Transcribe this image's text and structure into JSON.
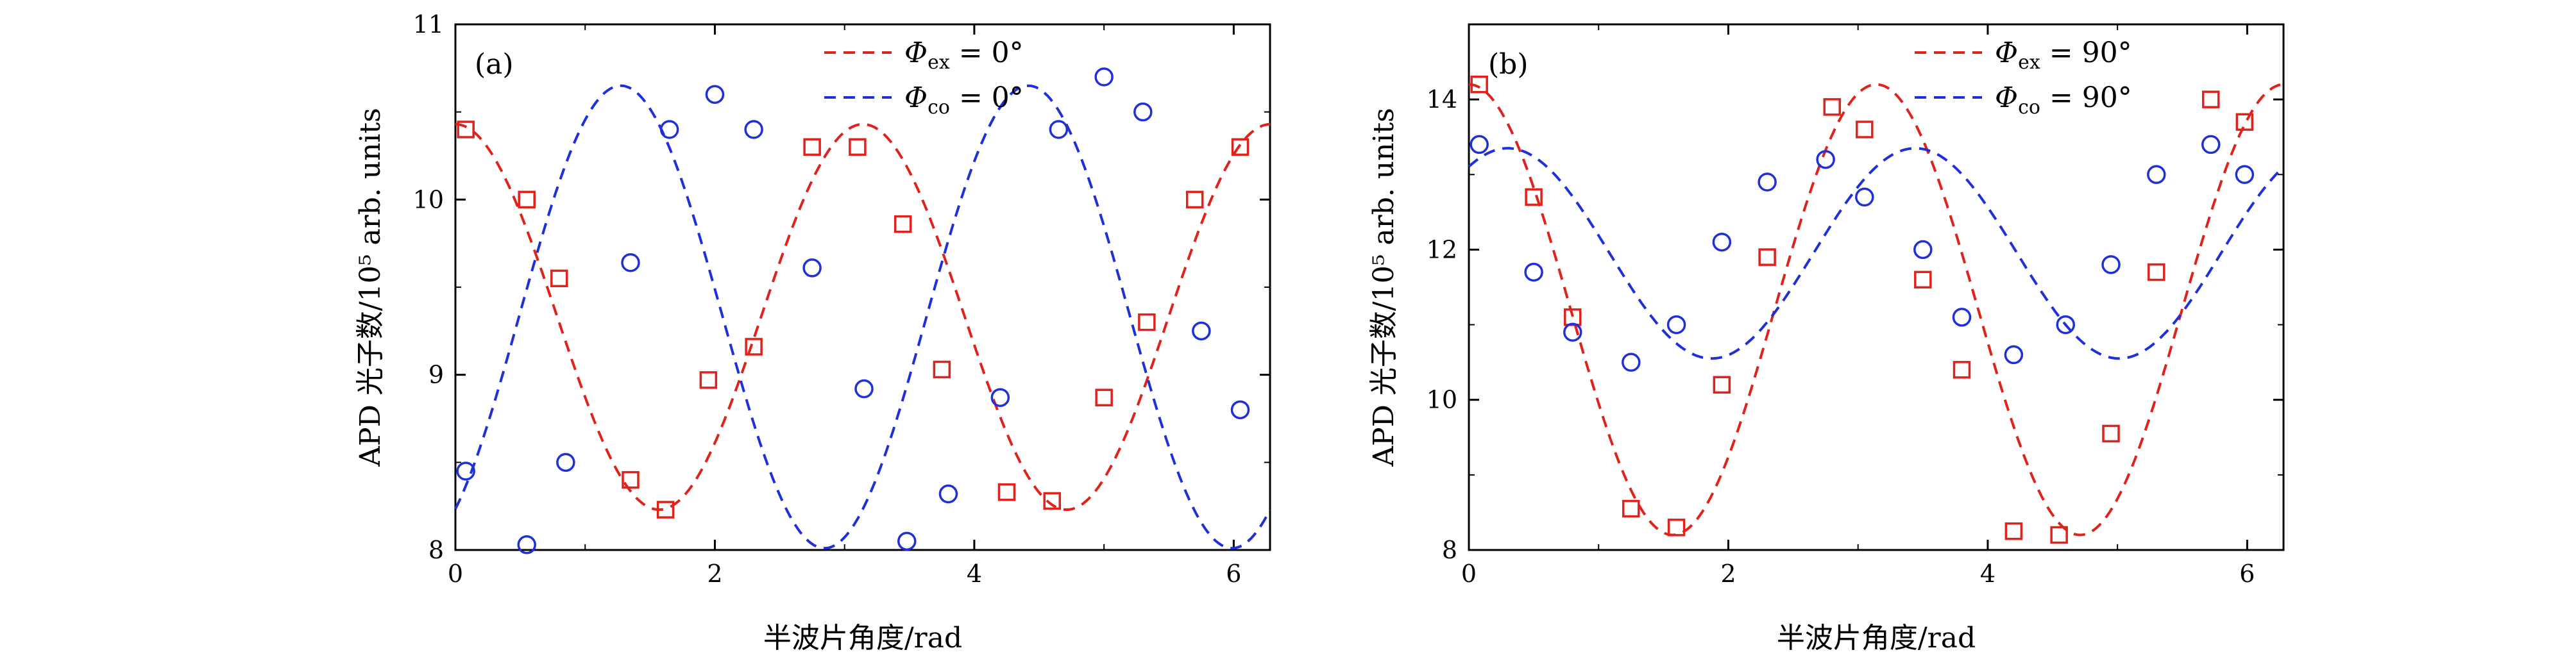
{
  "chart_data": [
    {
      "type": "scatter",
      "panel_label": "(a)",
      "xlabel": "半波片角度/rad",
      "ylabel": "APD 光子数/10⁵ arb. units",
      "xlim": [
        0,
        6.28
      ],
      "ylim": [
        8,
        11
      ],
      "xticks": [
        0,
        2,
        4,
        6
      ],
      "yticks": [
        8,
        9,
        10,
        11
      ],
      "legend_position": "top-right",
      "series": [
        {
          "name": "Φex = 0°",
          "legend_symbol": "Φ",
          "legend_subscript": "ex",
          "legend_value": " = 0°",
          "color": "#e0221c",
          "marker": "square",
          "fit": {
            "offset": 9.33,
            "amplitude": 1.1,
            "frequency": 2,
            "phase": 0
          },
          "points": [
            [
              0.08,
              10.4
            ],
            [
              0.55,
              10.0
            ],
            [
              0.8,
              9.55
            ],
            [
              1.35,
              8.4
            ],
            [
              1.62,
              8.23
            ],
            [
              1.95,
              8.97
            ],
            [
              2.3,
              9.16
            ],
            [
              2.75,
              10.3
            ],
            [
              3.1,
              10.3
            ],
            [
              3.45,
              9.86
            ],
            [
              3.75,
              9.03
            ],
            [
              4.25,
              8.33
            ],
            [
              4.6,
              8.28
            ],
            [
              5.0,
              8.87
            ],
            [
              5.33,
              9.3
            ],
            [
              5.7,
              10.0
            ],
            [
              6.05,
              10.3
            ]
          ]
        },
        {
          "name": "Φco = 0°",
          "legend_symbol": "Φ",
          "legend_subscript": "co",
          "legend_value": " = 0°",
          "color": "#1f2fd9",
          "marker": "circle",
          "fit": {
            "offset": 9.33,
            "amplitude": 1.32,
            "frequency": 2,
            "phase": 2.55
          },
          "points": [
            [
              0.08,
              8.45
            ],
            [
              0.55,
              8.03
            ],
            [
              0.85,
              8.5
            ],
            [
              1.35,
              9.64
            ],
            [
              1.65,
              10.4
            ],
            [
              2.0,
              10.6
            ],
            [
              2.3,
              10.4
            ],
            [
              2.75,
              9.61
            ],
            [
              3.15,
              8.92
            ],
            [
              3.48,
              8.05
            ],
            [
              3.8,
              8.32
            ],
            [
              4.2,
              8.87
            ],
            [
              4.65,
              10.4
            ],
            [
              5.0,
              10.7
            ],
            [
              5.3,
              10.5
            ],
            [
              5.75,
              9.25
            ],
            [
              6.05,
              8.8
            ]
          ]
        }
      ]
    },
    {
      "type": "scatter",
      "panel_label": "(b)",
      "xlabel": "半波片角度/rad",
      "ylabel": "APD 光子数/10⁵ arb. units",
      "xlim": [
        0,
        6.28
      ],
      "ylim": [
        8,
        15
      ],
      "xticks": [
        0,
        2,
        4,
        6
      ],
      "yticks": [
        8,
        10,
        12,
        14
      ],
      "legend_position": "top-right",
      "series": [
        {
          "name": "Φex = 90°",
          "legend_symbol": "Φ",
          "legend_subscript": "ex",
          "legend_value": " = 90°",
          "color": "#e0221c",
          "marker": "square",
          "fit": {
            "offset": 11.2,
            "amplitude": 3.0,
            "frequency": 2,
            "phase": 0
          },
          "points": [
            [
              0.08,
              14.2
            ],
            [
              0.5,
              12.7
            ],
            [
              0.8,
              11.1
            ],
            [
              1.25,
              8.55
            ],
            [
              1.6,
              8.3
            ],
            [
              1.95,
              10.2
            ],
            [
              2.3,
              11.9
            ],
            [
              2.8,
              13.9
            ],
            [
              3.05,
              13.6
            ],
            [
              3.5,
              11.6
            ],
            [
              3.8,
              10.4
            ],
            [
              4.2,
              8.25
            ],
            [
              4.55,
              8.2
            ],
            [
              4.95,
              9.55
            ],
            [
              5.3,
              11.7
            ],
            [
              5.72,
              14.0
            ],
            [
              5.98,
              13.7
            ]
          ]
        },
        {
          "name": "Φco = 90°",
          "legend_symbol": "Φ",
          "legend_subscript": "co",
          "legend_value": " = 90°",
          "color": "#1f2fd9",
          "marker": "circle",
          "fit": {
            "offset": 11.95,
            "amplitude": 1.4,
            "frequency": 2,
            "phase": 0.6
          },
          "points": [
            [
              0.08,
              13.4
            ],
            [
              0.5,
              11.7
            ],
            [
              0.8,
              10.9
            ],
            [
              1.25,
              10.5
            ],
            [
              1.6,
              11.0
            ],
            [
              1.95,
              12.1
            ],
            [
              2.3,
              12.9
            ],
            [
              2.75,
              13.2
            ],
            [
              3.05,
              12.7
            ],
            [
              3.5,
              12.0
            ],
            [
              3.8,
              11.1
            ],
            [
              4.2,
              10.6
            ],
            [
              4.6,
              11.0
            ],
            [
              4.95,
              11.8
            ],
            [
              5.3,
              13.0
            ],
            [
              5.72,
              13.4
            ],
            [
              5.98,
              13.0
            ]
          ]
        }
      ]
    }
  ]
}
